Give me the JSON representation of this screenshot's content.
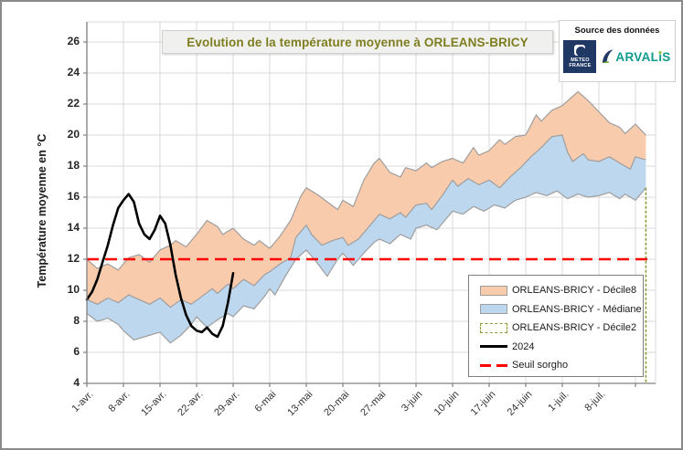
{
  "figure": {
    "title": "Evolution de la température moyenne à ORLEANS-BRICY",
    "title_color": "#7e7d1f"
  },
  "source": {
    "label": "Source des données",
    "meteo_logo": {
      "name": "meteo-france",
      "line1": "METEO",
      "line2": "FRANCE",
      "bg": "#1f3864"
    },
    "arvalis_logo": {
      "name": "arvalis",
      "part1": "ARVAL",
      "dotless_i": "ı",
      "part2": "S",
      "text_color": "#0f9b8e",
      "dot_color": "#8cc63e",
      "swoosh_navy": "#1f3864",
      "swoosh_green": "#6fae3a"
    }
  },
  "legend": {
    "items": [
      {
        "label": "ORLEANS-BRICY - Décile8",
        "swatch": "area",
        "fill": "#f8cbad",
        "stroke": "#9e9e9e",
        "dashed": false
      },
      {
        "label": "ORLEANS-BRICY - Médiane",
        "swatch": "area",
        "fill": "#bdd7ee",
        "stroke": "#9e9e9e",
        "dashed": false
      },
      {
        "label": "ORLEANS-BRICY - Décile2",
        "swatch": "area",
        "fill": "#ffffff",
        "stroke": "#8e9b3b",
        "dashed": true
      },
      {
        "label": "2024",
        "swatch": "line",
        "stroke": "#000000",
        "dashed": false
      },
      {
        "label": "Seuil sorgho",
        "swatch": "line",
        "stroke": "#ff0000",
        "dashed": true
      }
    ]
  },
  "chart_data": {
    "type": "area",
    "title": "Evolution de la température moyenne à ORLEANS-BRICY",
    "xlabel": "",
    "ylabel": "Température moyenne en °C",
    "ylim": [
      4,
      26
    ],
    "y_ticks": [
      4,
      6,
      8,
      10,
      12,
      14,
      16,
      18,
      20,
      22,
      24,
      26
    ],
    "grid": true,
    "legend_position": "inside lower right",
    "x_unit": "days from 1-avr.",
    "x_tick_days": [
      0,
      7,
      14,
      21,
      28,
      35,
      42,
      49,
      56,
      63,
      70,
      77,
      84,
      91,
      98
    ],
    "x_tick_labels": [
      "1-avr.",
      "8-avr.",
      "15-avr.",
      "22-avr.",
      "29-avr.",
      "6-mai",
      "13-mai",
      "20-mai",
      "27-mai",
      "3-juin",
      "10-juin",
      "17-juin",
      "24-juin",
      "1-juil.",
      "8-juil."
    ],
    "x_grid_end_day": 105,
    "end_day": 107,
    "seuil_sorgho": {
      "name": "Seuil sorgho",
      "value": 12,
      "color": "#ff0000",
      "style": "dashed"
    },
    "band_fills": {
      "decile8": "#f8cbad",
      "mediane": "#bdd7ee",
      "boundary_stroke": "#9e9e9e",
      "decile2_edge": "#8e9b3b"
    },
    "series": [
      {
        "name": "ORLEANS-BRICY - Décile8",
        "role": "upper band top",
        "points": [
          [
            0,
            12.0
          ],
          [
            2,
            11.4
          ],
          [
            4,
            11.7
          ],
          [
            6,
            11.3
          ],
          [
            8,
            12.1
          ],
          [
            10,
            12.3
          ],
          [
            12,
            11.8
          ],
          [
            14,
            12.6
          ],
          [
            16,
            12.9
          ],
          [
            17,
            13.2
          ],
          [
            19,
            12.8
          ],
          [
            21,
            13.6
          ],
          [
            23,
            14.5
          ],
          [
            25,
            14.1
          ],
          [
            26,
            13.6
          ],
          [
            28,
            14.0
          ],
          [
            30,
            13.3
          ],
          [
            32,
            12.9
          ],
          [
            33,
            13.2
          ],
          [
            35,
            12.7
          ],
          [
            37,
            13.5
          ],
          [
            39,
            14.5
          ],
          [
            41,
            16.1
          ],
          [
            42,
            16.6
          ],
          [
            44,
            16.2
          ],
          [
            46,
            15.7
          ],
          [
            48,
            15.2
          ],
          [
            49,
            15.8
          ],
          [
            51,
            15.4
          ],
          [
            53,
            17.1
          ],
          [
            55,
            18.2
          ],
          [
            56,
            18.5
          ],
          [
            58,
            17.6
          ],
          [
            60,
            17.3
          ],
          [
            61,
            17.9
          ],
          [
            63,
            17.7
          ],
          [
            65,
            18.2
          ],
          [
            66,
            17.9
          ],
          [
            68,
            18.3
          ],
          [
            70,
            18.5
          ],
          [
            72,
            18.2
          ],
          [
            74,
            19.2
          ],
          [
            75,
            18.7
          ],
          [
            77,
            19.0
          ],
          [
            79,
            19.7
          ],
          [
            80,
            19.4
          ],
          [
            82,
            19.9
          ],
          [
            84,
            20.0
          ],
          [
            86,
            21.3
          ],
          [
            87,
            20.9
          ],
          [
            89,
            21.6
          ],
          [
            91,
            21.9
          ],
          [
            93,
            22.5
          ],
          [
            94,
            22.8
          ],
          [
            96,
            22.2
          ],
          [
            98,
            21.5
          ],
          [
            100,
            20.8
          ],
          [
            102,
            20.5
          ],
          [
            103,
            20.1
          ],
          [
            105,
            20.7
          ],
          [
            107,
            20.0
          ]
        ]
      },
      {
        "name": "ORLEANS-BRICY - Médiane",
        "role": "boundary between bands",
        "points": [
          [
            0,
            9.4
          ],
          [
            2,
            9.1
          ],
          [
            4,
            9.5
          ],
          [
            6,
            9.2
          ],
          [
            8,
            9.7
          ],
          [
            10,
            9.4
          ],
          [
            12,
            9.1
          ],
          [
            14,
            9.5
          ],
          [
            16,
            8.9
          ],
          [
            18,
            9.4
          ],
          [
            20,
            9.1
          ],
          [
            22,
            9.6
          ],
          [
            24,
            10.1
          ],
          [
            25,
            9.8
          ],
          [
            27,
            10.4
          ],
          [
            28,
            10.1
          ],
          [
            30,
            10.7
          ],
          [
            32,
            10.3
          ],
          [
            34,
            11.0
          ],
          [
            35,
            11.2
          ],
          [
            37,
            11.7
          ],
          [
            39,
            12.1
          ],
          [
            40,
            13.4
          ],
          [
            42,
            14.2
          ],
          [
            43,
            13.6
          ],
          [
            45,
            12.9
          ],
          [
            47,
            13.2
          ],
          [
            49,
            13.4
          ],
          [
            50,
            12.9
          ],
          [
            52,
            13.3
          ],
          [
            54,
            14.1
          ],
          [
            56,
            14.9
          ],
          [
            58,
            14.6
          ],
          [
            60,
            15.0
          ],
          [
            61,
            14.7
          ],
          [
            63,
            15.5
          ],
          [
            65,
            15.6
          ],
          [
            66,
            15.2
          ],
          [
            68,
            16.1
          ],
          [
            70,
            17.1
          ],
          [
            71,
            16.7
          ],
          [
            73,
            17.2
          ],
          [
            75,
            16.8
          ],
          [
            77,
            17.1
          ],
          [
            79,
            16.6
          ],
          [
            81,
            17.3
          ],
          [
            83,
            17.9
          ],
          [
            85,
            18.6
          ],
          [
            87,
            19.2
          ],
          [
            89,
            19.9
          ],
          [
            91,
            20.0
          ],
          [
            92,
            18.9
          ],
          [
            93,
            18.3
          ],
          [
            95,
            18.8
          ],
          [
            96,
            18.4
          ],
          [
            98,
            18.3
          ],
          [
            100,
            18.6
          ],
          [
            102,
            18.2
          ],
          [
            104,
            17.8
          ],
          [
            105,
            18.6
          ],
          [
            107,
            18.4
          ]
        ]
      },
      {
        "name": "ORLEANS-BRICY - Décile2",
        "role": "lower band bottom",
        "points": [
          [
            0,
            8.5
          ],
          [
            2,
            8.0
          ],
          [
            4,
            8.2
          ],
          [
            6,
            7.8
          ],
          [
            7,
            7.4
          ],
          [
            9,
            6.8
          ],
          [
            11,
            7.0
          ],
          [
            13,
            7.2
          ],
          [
            14,
            7.3
          ],
          [
            16,
            6.6
          ],
          [
            18,
            7.1
          ],
          [
            20,
            7.8
          ],
          [
            21,
            8.3
          ],
          [
            23,
            7.6
          ],
          [
            25,
            8.1
          ],
          [
            27,
            8.5
          ],
          [
            28,
            8.3
          ],
          [
            30,
            9.0
          ],
          [
            32,
            8.8
          ],
          [
            34,
            9.6
          ],
          [
            35,
            10.1
          ],
          [
            36,
            9.7
          ],
          [
            38,
            10.9
          ],
          [
            40,
            12.0
          ],
          [
            42,
            12.6
          ],
          [
            44,
            11.8
          ],
          [
            46,
            10.9
          ],
          [
            48,
            12.0
          ],
          [
            49,
            12.4
          ],
          [
            51,
            11.6
          ],
          [
            53,
            12.4
          ],
          [
            55,
            13.1
          ],
          [
            56,
            13.3
          ],
          [
            58,
            13.0
          ],
          [
            60,
            13.6
          ],
          [
            62,
            13.3
          ],
          [
            63,
            14.0
          ],
          [
            65,
            14.2
          ],
          [
            67,
            13.9
          ],
          [
            69,
            14.7
          ],
          [
            70,
            15.1
          ],
          [
            72,
            14.9
          ],
          [
            74,
            15.4
          ],
          [
            76,
            15.1
          ],
          [
            78,
            15.5
          ],
          [
            80,
            15.3
          ],
          [
            82,
            15.8
          ],
          [
            84,
            16.0
          ],
          [
            86,
            16.3
          ],
          [
            88,
            16.1
          ],
          [
            90,
            16.4
          ],
          [
            92,
            15.9
          ],
          [
            94,
            16.2
          ],
          [
            96,
            16.0
          ],
          [
            98,
            16.1
          ],
          [
            100,
            16.3
          ],
          [
            102,
            15.9
          ],
          [
            103,
            16.2
          ],
          [
            105,
            15.8
          ],
          [
            107,
            16.6
          ]
        ]
      },
      {
        "name": "2024",
        "role": "observed line",
        "color": "#000000",
        "points": [
          [
            0,
            9.4
          ],
          [
            1,
            9.9
          ],
          [
            2,
            10.7
          ],
          [
            3,
            11.8
          ],
          [
            4,
            12.9
          ],
          [
            5,
            14.2
          ],
          [
            6,
            15.3
          ],
          [
            7,
            15.8
          ],
          [
            8,
            16.2
          ],
          [
            9,
            15.7
          ],
          [
            10,
            14.3
          ],
          [
            11,
            13.6
          ],
          [
            12,
            13.3
          ],
          [
            13,
            13.9
          ],
          [
            14,
            14.8
          ],
          [
            15,
            14.3
          ],
          [
            16,
            12.9
          ],
          [
            17,
            11.0
          ],
          [
            18,
            9.5
          ],
          [
            19,
            8.4
          ],
          [
            20,
            7.7
          ],
          [
            21,
            7.4
          ],
          [
            22,
            7.3
          ],
          [
            23,
            7.6
          ],
          [
            24,
            7.2
          ],
          [
            25,
            7.0
          ],
          [
            26,
            7.7
          ],
          [
            27,
            9.2
          ],
          [
            28,
            11.1
          ]
        ]
      }
    ]
  }
}
